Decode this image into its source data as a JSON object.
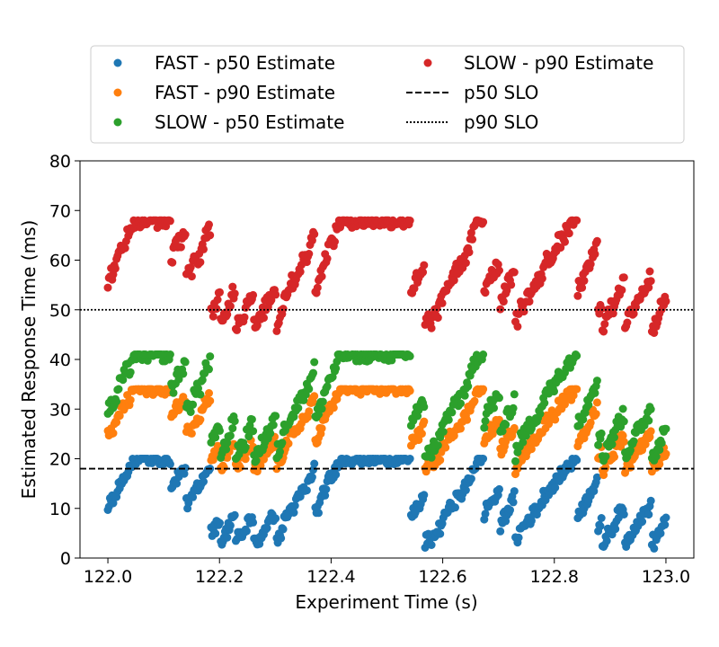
{
  "chart_data": {
    "type": "scatter",
    "title": "",
    "xlabel": "Experiment Time (s)",
    "ylabel": "Estimated Response Time (ms)",
    "xlim": [
      121.95,
      123.05
    ],
    "ylim": [
      0,
      80
    ],
    "xticks": [
      122.0,
      122.2,
      122.4,
      122.6,
      122.8,
      123.0
    ],
    "xtick_labels": [
      "122.0",
      "122.2",
      "122.4",
      "122.6",
      "122.8",
      "123.0"
    ],
    "yticks": [
      0,
      10,
      20,
      30,
      40,
      50,
      60,
      70,
      80
    ],
    "ytick_labels": [
      "0",
      "10",
      "20",
      "30",
      "40",
      "50",
      "60",
      "70",
      "80"
    ],
    "grid": false,
    "legend_position": "top",
    "series": [
      {
        "name": "FAST - p50 Estimate",
        "color": "#1f77b4",
        "x_range": [
          122.0,
          123.0
        ],
        "min": 0,
        "max": 20,
        "typical": 12
      },
      {
        "name": "FAST - p90 Estimate",
        "color": "#ff7f0e",
        "x_range": [
          122.0,
          123.0
        ],
        "min": 15,
        "max": 34,
        "typical": 27
      },
      {
        "name": "SLOW - p50 Estimate",
        "color": "#2ca02c",
        "x_range": [
          122.0,
          123.0
        ],
        "min": 17,
        "max": 41,
        "typical": 33
      },
      {
        "name": "SLOW - p90 Estimate",
        "color": "#d62728",
        "x_range": [
          122.0,
          123.0
        ],
        "min": 43,
        "max": 68,
        "typical": 60
      }
    ],
    "reference_lines": [
      {
        "name": "p50 SLO",
        "value": 18,
        "style": "dashed",
        "color": "#000000"
      },
      {
        "name": "p90 SLO",
        "value": 50,
        "style": "dotted",
        "color": "#000000"
      }
    ]
  }
}
